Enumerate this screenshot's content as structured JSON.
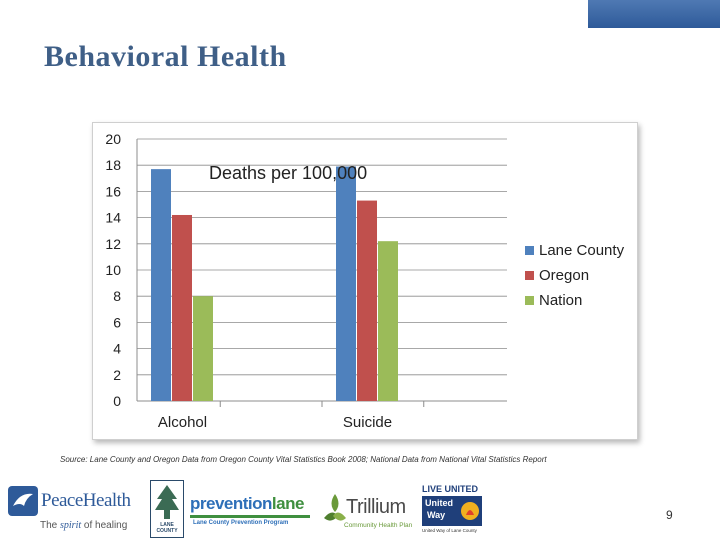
{
  "slide": {
    "title": "Behavioral Health",
    "source": "Source: Lane County and Oregon Data from Oregon County Vital Statistics Book 2008; National Data from National Vital Statistics Report",
    "page_number": "9"
  },
  "logos": {
    "peacehealth_name": "PeaceHealth",
    "peacehealth_tagline_a": "The ",
    "peacehealth_tagline_b": "spirit",
    "peacehealth_tagline_c": " of healing",
    "lane_county_text": "LANE COUNTY",
    "preventionlane_a": "prevention",
    "preventionlane_b": "lane",
    "preventionlane_sub": "Lane County Prevention Program",
    "trillium_name": "Trillium",
    "trillium_sub": "Community Health Plan",
    "united_way_top": "LIVE UNITED",
    "united_way_a": "United",
    "united_way_b": "Way",
    "united_way_sub": "United Way of Lane County"
  },
  "colors": {
    "lane_county": "#4f81bd",
    "oregon": "#c0504d",
    "nation": "#9bbb59",
    "title": "#3f5f87",
    "accent_bar": "#3a66a6"
  },
  "chart_data": {
    "type": "bar",
    "title": "Deaths per 100,000",
    "categories": [
      "Alcohol",
      "Suicide"
    ],
    "series": [
      {
        "name": "Lane County",
        "values": [
          17.7,
          17.9
        ]
      },
      {
        "name": "Oregon",
        "values": [
          14.2,
          15.3
        ]
      },
      {
        "name": "Nation",
        "values": [
          8.0,
          12.2
        ]
      }
    ],
    "ylim": [
      0,
      20
    ],
    "yticks": [
      "0",
      "2",
      "4",
      "6",
      "8",
      "10",
      "12",
      "14",
      "16",
      "18",
      "20"
    ],
    "xlabel": "",
    "ylabel": "",
    "grid": true,
    "legend": "right"
  }
}
